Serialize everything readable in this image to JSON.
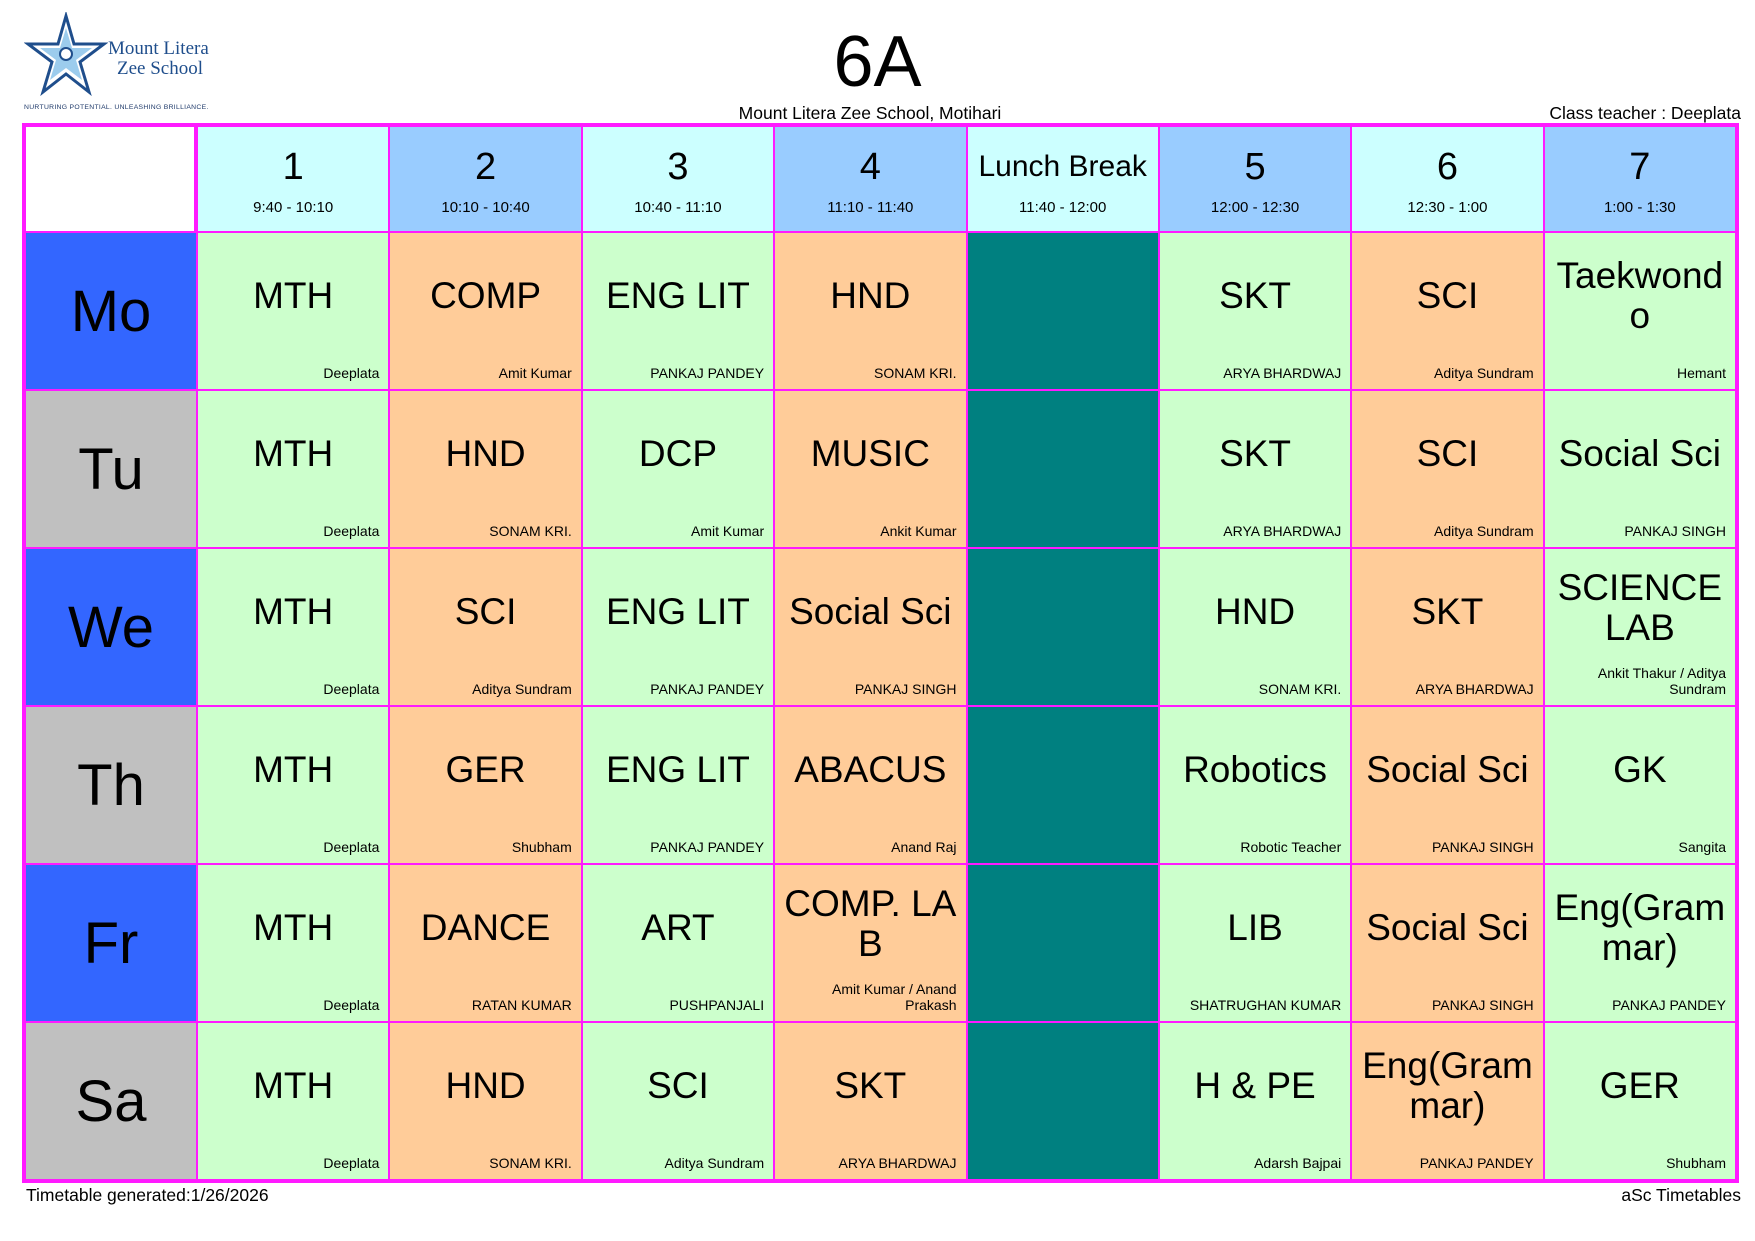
{
  "logo": {
    "line1": "Mount Litera",
    "line2": "Zee School",
    "tagline": "NURTURING POTENTIAL. UNLEASHING BRILLIANCE."
  },
  "title": "6A",
  "school": "Mount Litera Zee School, Motihari",
  "class_teacher": "Class teacher : Deeplata",
  "periods": [
    {
      "label": "1",
      "time": "9:40 - 10:10"
    },
    {
      "label": "2",
      "time": "10:10 - 10:40"
    },
    {
      "label": "3",
      "time": "10:40 - 11:10"
    },
    {
      "label": "4",
      "time": "11:10 - 11:40"
    },
    {
      "label": "Lunch Break",
      "time": "11:40 - 12:00"
    },
    {
      "label": "5",
      "time": "12:00 - 12:30"
    },
    {
      "label": "6",
      "time": "12:30 - 1:00"
    },
    {
      "label": "7",
      "time": "1:00 - 1:30"
    }
  ],
  "days": [
    {
      "name": "Mo",
      "cells": [
        {
          "subject": "MTH",
          "teacher": "Deeplata"
        },
        {
          "subject": "COMP",
          "teacher": "Amit Kumar"
        },
        {
          "subject": "ENG LIT",
          "teacher": "PANKAJ PANDEY"
        },
        {
          "subject": "HND",
          "teacher": "SONAM KRI."
        },
        {
          "subject": "",
          "teacher": ""
        },
        {
          "subject": "SKT",
          "teacher": "ARYA BHARDWAJ"
        },
        {
          "subject": "SCI",
          "teacher": "Aditya Sundram"
        },
        {
          "subject": "Taekwondo",
          "teacher": "Hemant"
        }
      ]
    },
    {
      "name": "Tu",
      "cells": [
        {
          "subject": "MTH",
          "teacher": "Deeplata"
        },
        {
          "subject": "HND",
          "teacher": "SONAM KRI."
        },
        {
          "subject": "DCP",
          "teacher": "Amit Kumar"
        },
        {
          "subject": "MUSIC",
          "teacher": "Ankit Kumar"
        },
        {
          "subject": "",
          "teacher": ""
        },
        {
          "subject": "SKT",
          "teacher": "ARYA BHARDWAJ"
        },
        {
          "subject": "SCI",
          "teacher": "Aditya Sundram"
        },
        {
          "subject": "Social Sci",
          "teacher": "PANKAJ SINGH"
        }
      ]
    },
    {
      "name": "We",
      "cells": [
        {
          "subject": "MTH",
          "teacher": "Deeplata"
        },
        {
          "subject": "SCI",
          "teacher": "Aditya Sundram"
        },
        {
          "subject": "ENG LIT",
          "teacher": "PANKAJ PANDEY"
        },
        {
          "subject": "Social Sci",
          "teacher": "PANKAJ SINGH"
        },
        {
          "subject": "",
          "teacher": ""
        },
        {
          "subject": "HND",
          "teacher": "SONAM KRI."
        },
        {
          "subject": "SKT",
          "teacher": "ARYA BHARDWAJ"
        },
        {
          "subject": "SCIENCE LAB",
          "teacher": "Ankit Thakur / Aditya Sundram"
        }
      ]
    },
    {
      "name": "Th",
      "cells": [
        {
          "subject": "MTH",
          "teacher": "Deeplata"
        },
        {
          "subject": "GER",
          "teacher": "Shubham"
        },
        {
          "subject": "ENG LIT",
          "teacher": "PANKAJ PANDEY"
        },
        {
          "subject": "ABACUS",
          "teacher": "Anand Raj"
        },
        {
          "subject": "",
          "teacher": ""
        },
        {
          "subject": "Robotics",
          "teacher": "Robotic Teacher"
        },
        {
          "subject": "Social Sci",
          "teacher": "PANKAJ SINGH"
        },
        {
          "subject": "GK",
          "teacher": "Sangita"
        }
      ]
    },
    {
      "name": "Fr",
      "cells": [
        {
          "subject": "MTH",
          "teacher": "Deeplata"
        },
        {
          "subject": "DANCE",
          "teacher": "RATAN KUMAR"
        },
        {
          "subject": "ART",
          "teacher": "PUSHPANJALI"
        },
        {
          "subject": "COMP. LAB",
          "teacher": "Amit Kumar / Anand Prakash"
        },
        {
          "subject": "",
          "teacher": ""
        },
        {
          "subject": "LIB",
          "teacher": "SHATRUGHAN KUMAR"
        },
        {
          "subject": "Social Sci",
          "teacher": "PANKAJ SINGH"
        },
        {
          "subject": "Eng(Grammar)",
          "teacher": "PANKAJ PANDEY"
        }
      ]
    },
    {
      "name": "Sa",
      "cells": [
        {
          "subject": "MTH",
          "teacher": "Deeplata"
        },
        {
          "subject": "HND",
          "teacher": "SONAM KRI."
        },
        {
          "subject": "SCI",
          "teacher": "Aditya Sundram"
        },
        {
          "subject": "SKT",
          "teacher": "ARYA BHARDWAJ"
        },
        {
          "subject": "",
          "teacher": ""
        },
        {
          "subject": "H & PE",
          "teacher": "Adarsh Bajpai"
        },
        {
          "subject": "Eng(Grammar)",
          "teacher": "PANKAJ PANDEY"
        },
        {
          "subject": "GER",
          "teacher": "Shubham"
        }
      ]
    }
  ],
  "footer": {
    "generated": "Timetable generated:1/26/2026",
    "brand": "aSc Timetables"
  },
  "colors": {
    "grid_border": "#ff1aff",
    "header_light": "#ccffff",
    "header_dark": "#99ccff",
    "cell_green": "#ccffcc",
    "cell_orange": "#ffcc99",
    "lunch": "#008080",
    "day_blue": "#3366ff",
    "day_grey": "#c0c0c0"
  }
}
